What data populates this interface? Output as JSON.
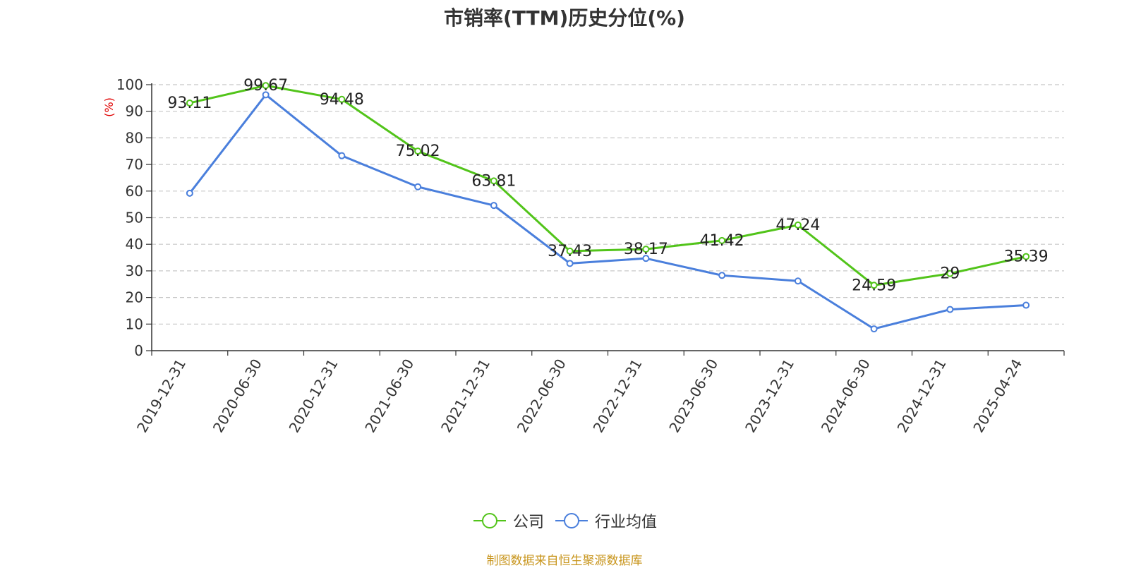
{
  "chart_data": {
    "type": "line",
    "title": "市销率(TTM)历史分位(%)",
    "ylabel": "(%)",
    "ylim": [
      0,
      100
    ],
    "yticks": [
      0,
      10,
      20,
      30,
      40,
      50,
      60,
      70,
      80,
      90,
      100
    ],
    "categories": [
      "2019-12-31",
      "2020-06-30",
      "2020-12-31",
      "2021-06-30",
      "2021-12-31",
      "2022-06-30",
      "2022-12-31",
      "2023-06-30",
      "2023-12-31",
      "2024-06-30",
      "2024-12-31",
      "2025-04-24"
    ],
    "series": [
      {
        "name": "公司",
        "color": "#52c41a",
        "values": [
          93.11,
          99.67,
          94.48,
          75.02,
          63.81,
          37.43,
          38.17,
          41.42,
          47.24,
          24.59,
          29,
          35.39
        ],
        "labels": [
          "93.11",
          "99.67",
          "94.48",
          "75.02",
          "63.81",
          "37.43",
          "38.17",
          "41.42",
          "47.24",
          "24.59",
          "29",
          "35.39"
        ]
      },
      {
        "name": "行业均值",
        "color": "#4a7fdc",
        "values": [
          59.2,
          96.2,
          73.3,
          61.6,
          54.6,
          32.8,
          34.7,
          28.3,
          26.2,
          8.2,
          15.5,
          17.1
        ]
      }
    ],
    "grid": true,
    "legend_position": "bottom"
  },
  "source": "制图数据来自恒生聚源数据库"
}
